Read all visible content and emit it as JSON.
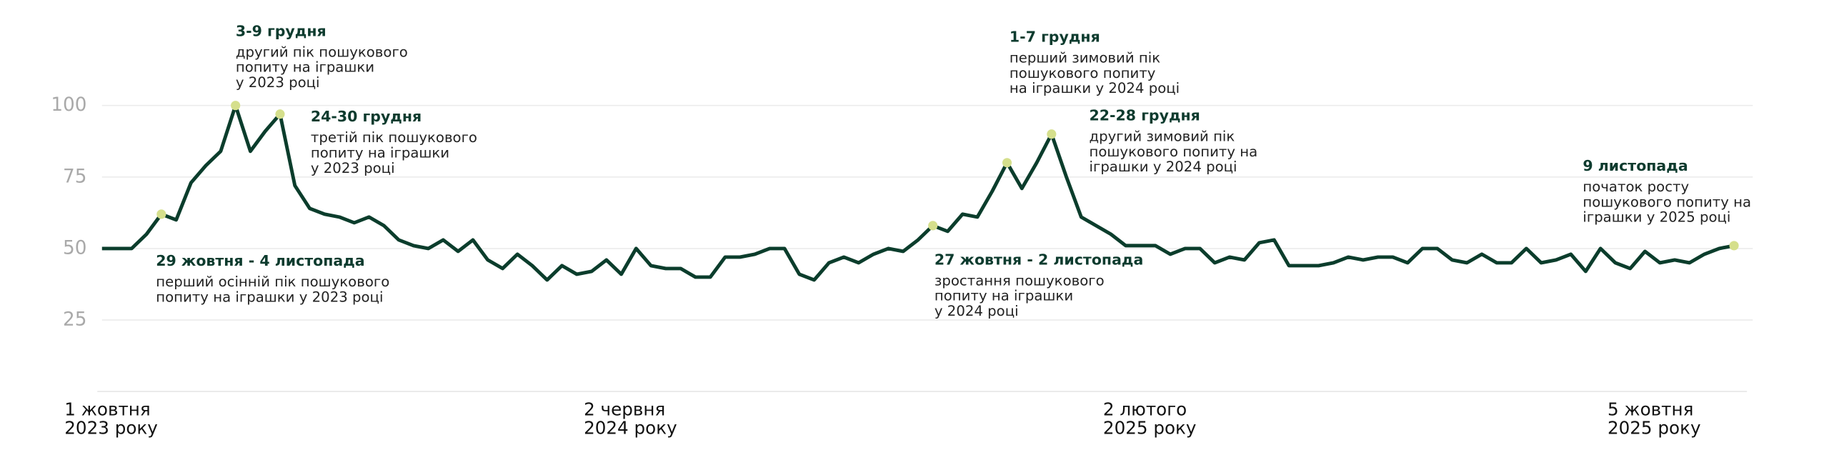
{
  "chart_data": {
    "type": "line",
    "series": [
      {
        "color": "#0b3d2c",
        "values": [
          50,
          50,
          50,
          55,
          62,
          60,
          73,
          79,
          84,
          100,
          84,
          91,
          97,
          72,
          64,
          62,
          61,
          59,
          61,
          58,
          53,
          51,
          50,
          53,
          49,
          53,
          46,
          43,
          48,
          44,
          39,
          44,
          41,
          42,
          46,
          41,
          50,
          44,
          43,
          43,
          40,
          40,
          47,
          47,
          48,
          50,
          50,
          41,
          39,
          45,
          47,
          45,
          48,
          50,
          49,
          53,
          58,
          56,
          62,
          61,
          70,
          80,
          71,
          80,
          90,
          75,
          61,
          58,
          55,
          51,
          51,
          51,
          48,
          50,
          50,
          45,
          47,
          46,
          52,
          53,
          44,
          44,
          44,
          45,
          47,
          46,
          47,
          47,
          45,
          50,
          50,
          46,
          45,
          48,
          45,
          45,
          50,
          45,
          46,
          48,
          42,
          50,
          45,
          43,
          49,
          45,
          46,
          45,
          48,
          50,
          51
        ]
      }
    ],
    "ylim": [
      0,
      100
    ],
    "yticks": [
      25,
      50,
      75,
      100
    ],
    "grid": true,
    "xticks": [
      {
        "value": 0,
        "label": [
          "1 жовтня",
          "2023 року"
        ]
      },
      {
        "value": 35,
        "label": [
          "2 червня",
          "2024 року"
        ]
      },
      {
        "value": 70,
        "label": [
          "2 лютого",
          "2025 року"
        ]
      },
      {
        "value": 104,
        "label": [
          "5 жовтня",
          "2025 року"
        ]
      }
    ],
    "highlight_color": "#d5df8c",
    "annotations": [
      {
        "point": 9,
        "title": "3-9 грудня",
        "text": [
          "другий пік пошукового",
          "попиту на іграшки",
          "у 2023 році"
        ]
      },
      {
        "point": 12,
        "title": "24-30 грудня",
        "text": [
          "третій пік пошукового",
          "попиту на іграшки",
          "у 2023 році"
        ]
      },
      {
        "point": 4,
        "title": "29 жовтня - 4 листопада",
        "text": [
          "перший осінній пік пошукового",
          "попиту на іграшки у 2023 році"
        ]
      },
      {
        "point": 61,
        "title": "1-7 грудня",
        "text": [
          "перший зимовий пік",
          "пошукового попиту",
          "на іграшки у 2024 році"
        ]
      },
      {
        "point": 64,
        "title": "22-28 грудня",
        "text": [
          "другий зимовий пік",
          "пошукового попиту на",
          "іграшки у 2024 році"
        ]
      },
      {
        "point": 56,
        "title": "27 жовтня - 2 листопада",
        "text": [
          "зростання пошукового",
          "попиту на іграшки",
          "у 2024 році"
        ]
      },
      {
        "point": 110,
        "title": "9 листопада",
        "text": [
          "початок росту",
          "пошукового попиту на",
          "іграшки у 2025 році"
        ]
      }
    ]
  }
}
